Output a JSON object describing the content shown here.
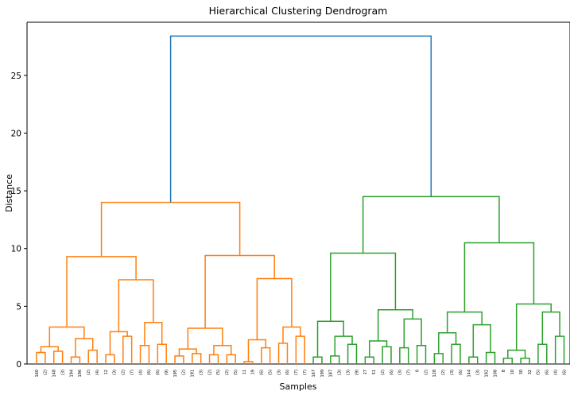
{
  "chart_data": {
    "type": "dendrogram",
    "title": "Hierarchical Clustering Dendrogram",
    "xlabel": "Samples",
    "ylabel": "Distance",
    "ylim": [
      0,
      29.6
    ],
    "yticks": [
      0,
      5,
      10,
      15,
      20,
      25
    ],
    "leaf_labels": [
      "160",
      "(2)",
      "148",
      "(3)",
      "194",
      "196",
      "(2)",
      "(4)",
      "12",
      "(3)",
      "(2)",
      "(7)",
      "(4)",
      "(6)",
      "(6)",
      "(9)",
      "195",
      "(2)",
      "191",
      "(3)",
      "(2)",
      "(5)",
      "(2)",
      "(5)",
      "11",
      "19",
      "(6)",
      "(5)",
      "(3)",
      "(6)",
      "(7)",
      "(7)",
      "167",
      "199",
      "187",
      "(3)",
      "(3)",
      "(9)",
      "27",
      "51",
      "(2)",
      "(6)",
      "(3)",
      "(7)",
      "0",
      "(2)",
      "128",
      "(2)",
      "(3)",
      "(6)",
      "144",
      "(3)",
      "192",
      "108",
      "8",
      "10",
      "30",
      "32",
      "(5)",
      "(6)",
      "(4)",
      "(6)"
    ],
    "colors": {
      "cluster_1": "#ff7f0e",
      "cluster_2": "#2ca02c",
      "root": "#1f77b4"
    },
    "links": [
      {
        "left": 0,
        "right": 1,
        "height": 1.0,
        "color": "cluster_1"
      },
      {
        "left": 2,
        "right": 3,
        "height": 1.1,
        "color": "cluster_1"
      },
      {
        "left": "L1",
        "right": "L2",
        "height": 1.5,
        "color": "cluster_1"
      },
      {
        "left": 4,
        "right": 5,
        "height": 0.6,
        "color": "cluster_1"
      },
      {
        "left": 6,
        "right": 7,
        "height": 1.2,
        "color": "cluster_1"
      },
      {
        "left": "L4",
        "right": "L5",
        "height": 2.2,
        "color": "cluster_1"
      },
      {
        "left": "L3",
        "right": "L6",
        "height": 3.2,
        "color": "cluster_1"
      },
      {
        "left": 8,
        "right": 9,
        "height": 0.8,
        "color": "cluster_1"
      },
      {
        "left": 10,
        "right": 11,
        "height": 2.4,
        "color": "cluster_1"
      },
      {
        "left": "L8",
        "right": "L9",
        "height": 2.8,
        "color": "cluster_1"
      },
      {
        "left": 12,
        "right": 13,
        "height": 1.6,
        "color": "cluster_1"
      },
      {
        "left": 14,
        "right": 15,
        "height": 1.7,
        "color": "cluster_1"
      },
      {
        "left": "L11",
        "right": "L12",
        "height": 3.6,
        "color": "cluster_1"
      },
      {
        "left": "L10",
        "right": "L13",
        "height": 7.3,
        "color": "cluster_1"
      },
      {
        "left": "L7",
        "right": "L14",
        "height": 9.3,
        "color": "cluster_1"
      },
      {
        "left": 16,
        "right": 17,
        "height": 0.7,
        "color": "cluster_1"
      },
      {
        "left": 18,
        "right": 19,
        "height": 0.9,
        "color": "cluster_1"
      },
      {
        "left": "L16",
        "right": "L17",
        "height": 1.3,
        "color": "cluster_1"
      },
      {
        "left": 20,
        "right": 21,
        "height": 0.8,
        "color": "cluster_1"
      },
      {
        "left": 22,
        "right": 23,
        "height": 0.8,
        "color": "cluster_1"
      },
      {
        "left": "L19",
        "right": "L20",
        "height": 1.6,
        "color": "cluster_1"
      },
      {
        "left": "L18",
        "right": "L21",
        "height": 3.1,
        "color": "cluster_1"
      },
      {
        "left": 24,
        "right": 25,
        "height": 0.2,
        "color": "cluster_1"
      },
      {
        "left": 26,
        "right": 27,
        "height": 1.4,
        "color": "cluster_1"
      },
      {
        "left": "L23",
        "right": "L24",
        "height": 2.1,
        "color": "cluster_1"
      },
      {
        "left": 28,
        "right": 29,
        "height": 1.8,
        "color": "cluster_1"
      },
      {
        "left": 30,
        "right": 31,
        "height": 2.4,
        "color": "cluster_1"
      },
      {
        "left": "L26",
        "right": "L27",
        "height": 3.2,
        "color": "cluster_1"
      },
      {
        "left": "L25",
        "right": "L28",
        "height": 7.4,
        "color": "cluster_1"
      },
      {
        "left": "L22",
        "right": "L29",
        "height": 9.4,
        "color": "cluster_1"
      },
      {
        "left": "L15",
        "right": "L30",
        "height": 14.0,
        "color": "cluster_1"
      },
      {
        "left": 32,
        "right": 33,
        "height": 0.6,
        "color": "cluster_2"
      },
      {
        "left": 34,
        "right": 35,
        "height": 0.7,
        "color": "cluster_2"
      },
      {
        "left": 36,
        "right": 37,
        "height": 1.7,
        "color": "cluster_2"
      },
      {
        "left": "L33",
        "right": "L34",
        "height": 2.4,
        "color": "cluster_2"
      },
      {
        "left": "L32",
        "right": "L35",
        "height": 3.7,
        "color": "cluster_2"
      },
      {
        "left": 38,
        "right": 39,
        "height": 0.6,
        "color": "cluster_2"
      },
      {
        "left": 40,
        "right": 41,
        "height": 1.5,
        "color": "cluster_2"
      },
      {
        "left": "L37",
        "right": "L38",
        "height": 2.0,
        "color": "cluster_2"
      },
      {
        "left": 42,
        "right": 43,
        "height": 1.4,
        "color": "cluster_2"
      },
      {
        "left": 44,
        "right": 45,
        "height": 1.6,
        "color": "cluster_2"
      },
      {
        "left": "L40",
        "right": "L41",
        "height": 3.9,
        "color": "cluster_2"
      },
      {
        "left": "L39",
        "right": "L42",
        "height": 4.7,
        "color": "cluster_2"
      },
      {
        "left": "L36",
        "right": "L43",
        "height": 9.6,
        "color": "cluster_2"
      },
      {
        "left": 46,
        "right": 47,
        "height": 0.9,
        "color": "cluster_2"
      },
      {
        "left": 48,
        "right": 49,
        "height": 1.7,
        "color": "cluster_2"
      },
      {
        "left": "L45",
        "right": "L46",
        "height": 2.7,
        "color": "cluster_2"
      },
      {
        "left": 50,
        "right": 51,
        "height": 0.6,
        "color": "cluster_2"
      },
      {
        "left": 52,
        "right": 53,
        "height": 1.0,
        "color": "cluster_2"
      },
      {
        "left": "L48",
        "right": "L49",
        "height": 3.4,
        "color": "cluster_2"
      },
      {
        "left": "L47",
        "right": "L50",
        "height": 4.5,
        "color": "cluster_2"
      },
      {
        "left": 54,
        "right": 55,
        "height": 0.5,
        "color": "cluster_2"
      },
      {
        "left": 56,
        "right": 57,
        "height": 0.5,
        "color": "cluster_2"
      },
      {
        "left": "L52",
        "right": "L53",
        "height": 1.2,
        "color": "cluster_2"
      },
      {
        "left": 58,
        "right": 59,
        "height": 1.7,
        "color": "cluster_2"
      },
      {
        "left": 60,
        "right": 61,
        "height": 2.4,
        "color": "cluster_2"
      },
      {
        "left": "L55",
        "right": "L56",
        "height": 4.5,
        "color": "cluster_2"
      },
      {
        "left": "L54",
        "right": "L57",
        "height": 5.2,
        "color": "cluster_2"
      },
      {
        "left": "L51",
        "right": "L58",
        "height": 10.5,
        "color": "cluster_2"
      },
      {
        "left": "L44",
        "right": "L59",
        "height": 14.5,
        "color": "cluster_2"
      },
      {
        "left": "L31",
        "right": "L60",
        "height": 28.4,
        "color": "root"
      }
    ]
  }
}
